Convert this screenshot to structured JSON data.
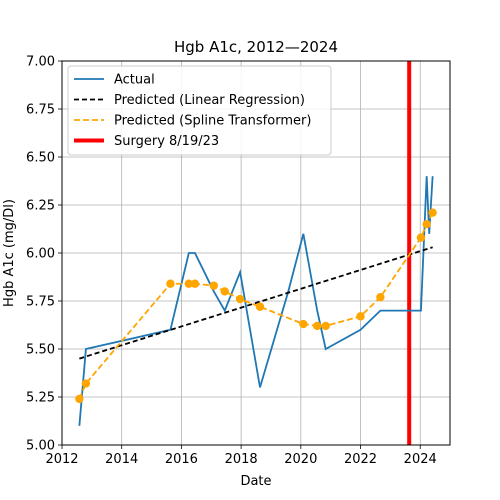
{
  "chart_data": {
    "type": "line",
    "title": "Hgb A1c, 2012—2024",
    "xlabel": "Date",
    "ylabel": "Hgb A1c (mg/Dl)",
    "xlim": [
      "2012-01-01",
      "2024-12-31"
    ],
    "ylim": [
      5.0,
      7.0
    ],
    "grid": true,
    "legend_position": "top-left",
    "x_ticks": [
      "2012",
      "2014",
      "2016",
      "2018",
      "2020",
      "2022",
      "2024"
    ],
    "x_tick_dates": [
      "2012-01-01",
      "2014-01-01",
      "2016-01-01",
      "2018-01-01",
      "2020-01-01",
      "2022-01-01",
      "2024-01-01"
    ],
    "y_ticks": [
      "5.00",
      "5.25",
      "5.50",
      "5.75",
      "6.00",
      "6.25",
      "6.50",
      "6.75",
      "7.00"
    ],
    "y_tick_values": [
      5.0,
      5.25,
      5.5,
      5.75,
      6.0,
      6.25,
      6.5,
      6.75,
      7.0
    ],
    "series": [
      {
        "name": "Actual",
        "style": "solid",
        "color": "#1f77b4",
        "points": [
          [
            "2012-08-01",
            5.1
          ],
          [
            "2012-10-20",
            5.5
          ],
          [
            "2015-08-20",
            5.6
          ],
          [
            "2016-04-01",
            6.0
          ],
          [
            "2016-06-15",
            6.0
          ],
          [
            "2017-02-01",
            5.8
          ],
          [
            "2017-06-15",
            5.7
          ],
          [
            "2017-12-20",
            5.9
          ],
          [
            "2018-08-20",
            5.3
          ],
          [
            "2019-08-01",
            5.8
          ],
          [
            "2020-02-01",
            6.1
          ],
          [
            "2020-07-20",
            5.7
          ],
          [
            "2020-11-01",
            5.5
          ],
          [
            "2022-01-01",
            5.6
          ],
          [
            "2022-09-01",
            5.7
          ],
          [
            "2024-01-10",
            5.7
          ],
          [
            "2024-03-20",
            6.4
          ],
          [
            "2024-04-20",
            6.1
          ],
          [
            "2024-06-01",
            6.4
          ]
        ]
      },
      {
        "name": "Predicted (Linear Regression)",
        "style": "dashed",
        "color": "#000000",
        "points": [
          [
            "2012-08-01",
            5.45
          ],
          [
            "2024-06-01",
            6.03
          ]
        ]
      },
      {
        "name": "Predicted (Spline Transformer)",
        "style": "dashed-markers",
        "color": "#ffa500",
        "points": [
          [
            "2012-08-01",
            5.24
          ],
          [
            "2012-10-20",
            5.32
          ],
          [
            "2015-08-20",
            5.84
          ],
          [
            "2016-04-01",
            5.84
          ],
          [
            "2016-06-15",
            5.84
          ],
          [
            "2017-02-01",
            5.83
          ],
          [
            "2017-06-15",
            5.8
          ],
          [
            "2017-12-20",
            5.76
          ],
          [
            "2018-08-20",
            5.72
          ],
          [
            "2020-02-01",
            5.63
          ],
          [
            "2020-07-20",
            5.62
          ],
          [
            "2020-11-01",
            5.62
          ],
          [
            "2022-01-01",
            5.67
          ],
          [
            "2022-09-01",
            5.77
          ],
          [
            "2024-01-10",
            6.08
          ],
          [
            "2024-03-20",
            6.15
          ],
          [
            "2024-06-01",
            6.21
          ]
        ]
      }
    ],
    "vline": {
      "name": "Surgery 8/19/23",
      "date": "2023-08-19",
      "color": "#ff0000"
    }
  }
}
